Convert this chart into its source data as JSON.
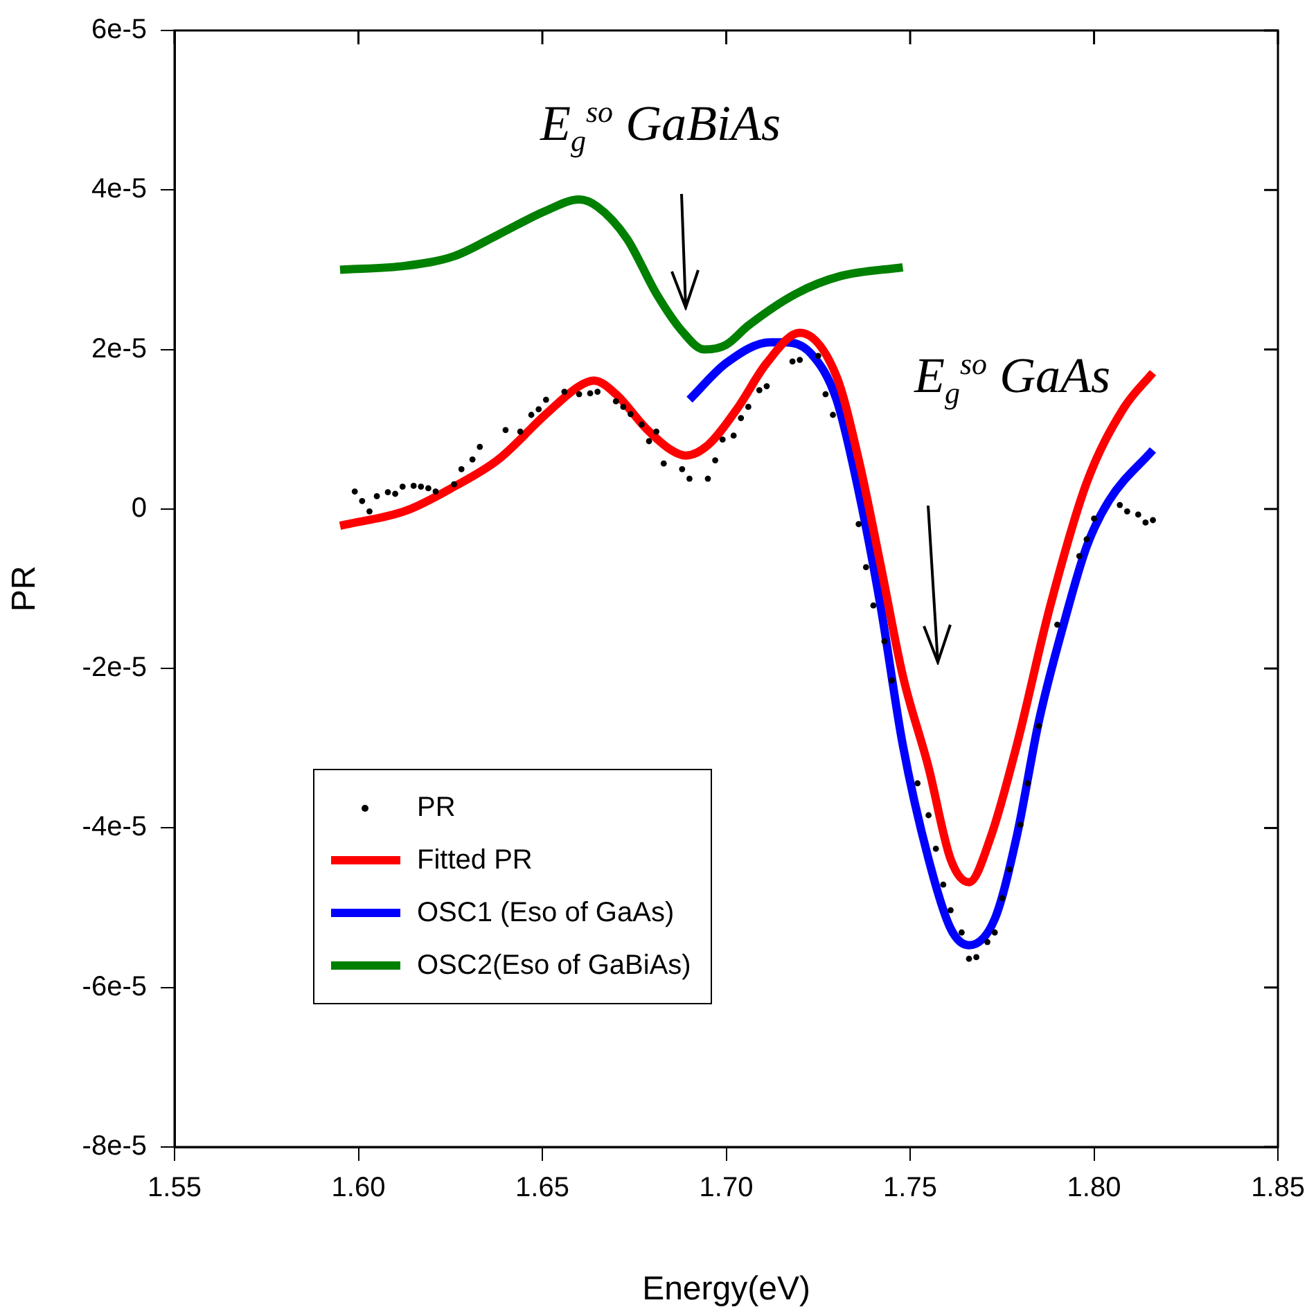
{
  "chart_data": {
    "type": "line",
    "xlabel": "Energy(eV)",
    "ylabel": "PR",
    "xlim": [
      1.55,
      1.85
    ],
    "xticks": [
      1.55,
      {
        "value": 1.6,
        "label": "1.60"
      },
      1.65,
      {
        "value": 1.7,
        "label": "1.70"
      },
      1.75,
      {
        "value": 1.8,
        "label": "1.80"
      },
      1.85
    ],
    "ylim": [
      -8e-05,
      6e-05
    ],
    "yticks": [
      {
        "value": -8e-05,
        "label": "-8e-5"
      },
      {
        "value": -6e-05,
        "label": "-6e-5"
      },
      {
        "value": -4e-05,
        "label": "-4e-5"
      },
      {
        "value": -2e-05,
        "label": "-2e-5"
      },
      0,
      {
        "value": 2e-05,
        "label": "2e-5"
      },
      {
        "value": 4e-05,
        "label": "4e-5"
      },
      {
        "value": 6e-05,
        "label": "6e-5"
      }
    ],
    "grid": false,
    "legend": "bottom left",
    "annotations": [
      "E$_{g}$$^{so}$  GaBiAs",
      "E$_{g}$$^{so}$  GaAs"
    ],
    "series": [
      {
        "name": "PR",
        "type": "scatter",
        "marker": "circle",
        "color": "#000000",
        "x": [
          1.599,
          1.601,
          1.603,
          1.605,
          1.608,
          1.61,
          1.612,
          1.615,
          1.617,
          1.619,
          1.621,
          1.626,
          1.628,
          1.631,
          1.633,
          1.64,
          1.644,
          1.647,
          1.649,
          1.651,
          1.656,
          1.66,
          1.663,
          1.665,
          1.67,
          1.672,
          1.674,
          1.677,
          1.679,
          1.681,
          1.683,
          1.688,
          1.69,
          1.695,
          1.697,
          1.699,
          1.702,
          1.704,
          1.706,
          1.709,
          1.711,
          1.718,
          1.72,
          1.725,
          1.727,
          1.729,
          1.736,
          1.738,
          1.74,
          1.743,
          1.745,
          1.752,
          1.755,
          1.757,
          1.759,
          1.761,
          1.764,
          1.766,
          1.768,
          1.771,
          1.773,
          1.775,
          1.777,
          1.78,
          1.782,
          1.785,
          1.79,
          1.796,
          1.798,
          1.8,
          1.807,
          1.809,
          1.812,
          1.814,
          1.816
        ],
        "values": [
          2.2e-06,
          1e-06,
          -3e-07,
          1.6e-06,
          2.1e-06,
          1.9e-06,
          2.8e-06,
          2.9e-06,
          2.8e-06,
          2.6e-06,
          2.2e-06,
          3.1e-06,
          5e-06,
          6.2e-06,
          7.8e-06,
          9.9e-06,
          9.7e-06,
          1.18e-05,
          1.25e-05,
          1.37e-05,
          1.47e-05,
          1.44e-05,
          1.45e-05,
          1.47e-05,
          1.35e-05,
          1.28e-05,
          1.19e-05,
          1.06e-05,
          8.5e-06,
          9.7e-06,
          5.7e-06,
          5e-06,
          3.8e-06,
          3.8e-06,
          6.1e-06,
          8.7e-06,
          9.2e-06,
          1.14e-05,
          1.28e-05,
          1.49e-05,
          1.54e-05,
          1.85e-05,
          1.87e-05,
          1.92e-05,
          1.44e-05,
          1.18e-05,
          -1.9e-06,
          -7.3e-06,
          -1.21e-05,
          -1.66e-05,
          -2.15e-05,
          -3.44e-05,
          -3.84e-05,
          -4.26e-05,
          -4.71e-05,
          -5.03e-05,
          -5.31e-05,
          -5.64e-05,
          -5.62e-05,
          -5.43e-05,
          -5.31e-05,
          -4.88e-05,
          -4.52e-05,
          -3.96e-05,
          -3.44e-05,
          -2.72e-05,
          -1.45e-05,
          -5.9e-06,
          -3.8e-06,
          -1.2e-06,
          5e-07,
          -3e-07,
          -7e-07,
          -1.7e-06,
          -1.4e-06
        ]
      },
      {
        "name": "Fitted PR",
        "color": "#ff0000",
        "x": [
          1.595,
          1.613,
          1.626,
          1.638,
          1.651,
          1.66,
          1.664,
          1.67,
          1.678,
          1.685,
          1.689,
          1.695,
          1.703,
          1.711,
          1.72,
          1.73,
          1.736,
          1.742,
          1.748,
          1.755,
          1.761,
          1.766,
          1.772,
          1.779,
          1.788,
          1.798,
          1.808,
          1.816
        ],
        "values": [
          -2.1e-06,
          -2e-07,
          2.8e-06,
          6.2e-06,
          1.19e-05,
          1.54e-05,
          1.61e-05,
          1.44e-05,
          1.02e-05,
          7.4e-06,
          6.7e-06,
          8e-06,
          1.26e-05,
          1.83e-05,
          2.21e-05,
          1.66e-05,
          6.2e-06,
          -7.1e-06,
          -2.09e-05,
          -3.24e-05,
          -4.39e-05,
          -4.68e-05,
          -4.1e-05,
          -2.96e-05,
          -1.23e-05,
          3.3e-06,
          1.26e-05,
          1.71e-05
        ]
      },
      {
        "name": "OSC1 (Eso of GaAs)",
        "color": "#0000ff",
        "x": [
          1.69,
          1.7,
          1.712,
          1.716,
          1.723,
          1.73,
          1.736,
          1.742,
          1.748,
          1.755,
          1.761,
          1.766,
          1.773,
          1.779,
          1.785,
          1.792,
          1.798,
          1.804,
          1.816
        ],
        "values": [
          1.37e-05,
          1.83e-05,
          2.09e-05,
          2.09e-05,
          1.95e-05,
          1.37e-05,
          2.2e-06,
          -1.23e-05,
          -2.96e-05,
          -4.39e-05,
          -5.26e-05,
          -5.47e-05,
          -5.14e-05,
          -4.1e-05,
          -2.66e-05,
          -1.4e-05,
          -4.7e-06,
          1e-06,
          7.4e-06
        ]
      },
      {
        "name": "OSC2(Eso of GaBiAs)",
        "color": "#008000",
        "x": [
          1.595,
          1.613,
          1.626,
          1.638,
          1.651,
          1.66,
          1.665,
          1.673,
          1.681,
          1.688,
          1.694,
          1.7,
          1.706,
          1.719,
          1.731,
          1.748
        ],
        "values": [
          3e-05,
          3.05e-05,
          3.17e-05,
          3.44e-05,
          3.74e-05,
          3.88e-05,
          3.79e-05,
          3.39e-05,
          2.7e-05,
          2.23e-05,
          2e-05,
          2.06e-05,
          2.3e-05,
          2.7e-05,
          2.92e-05,
          3.03e-05
        ]
      }
    ]
  }
}
